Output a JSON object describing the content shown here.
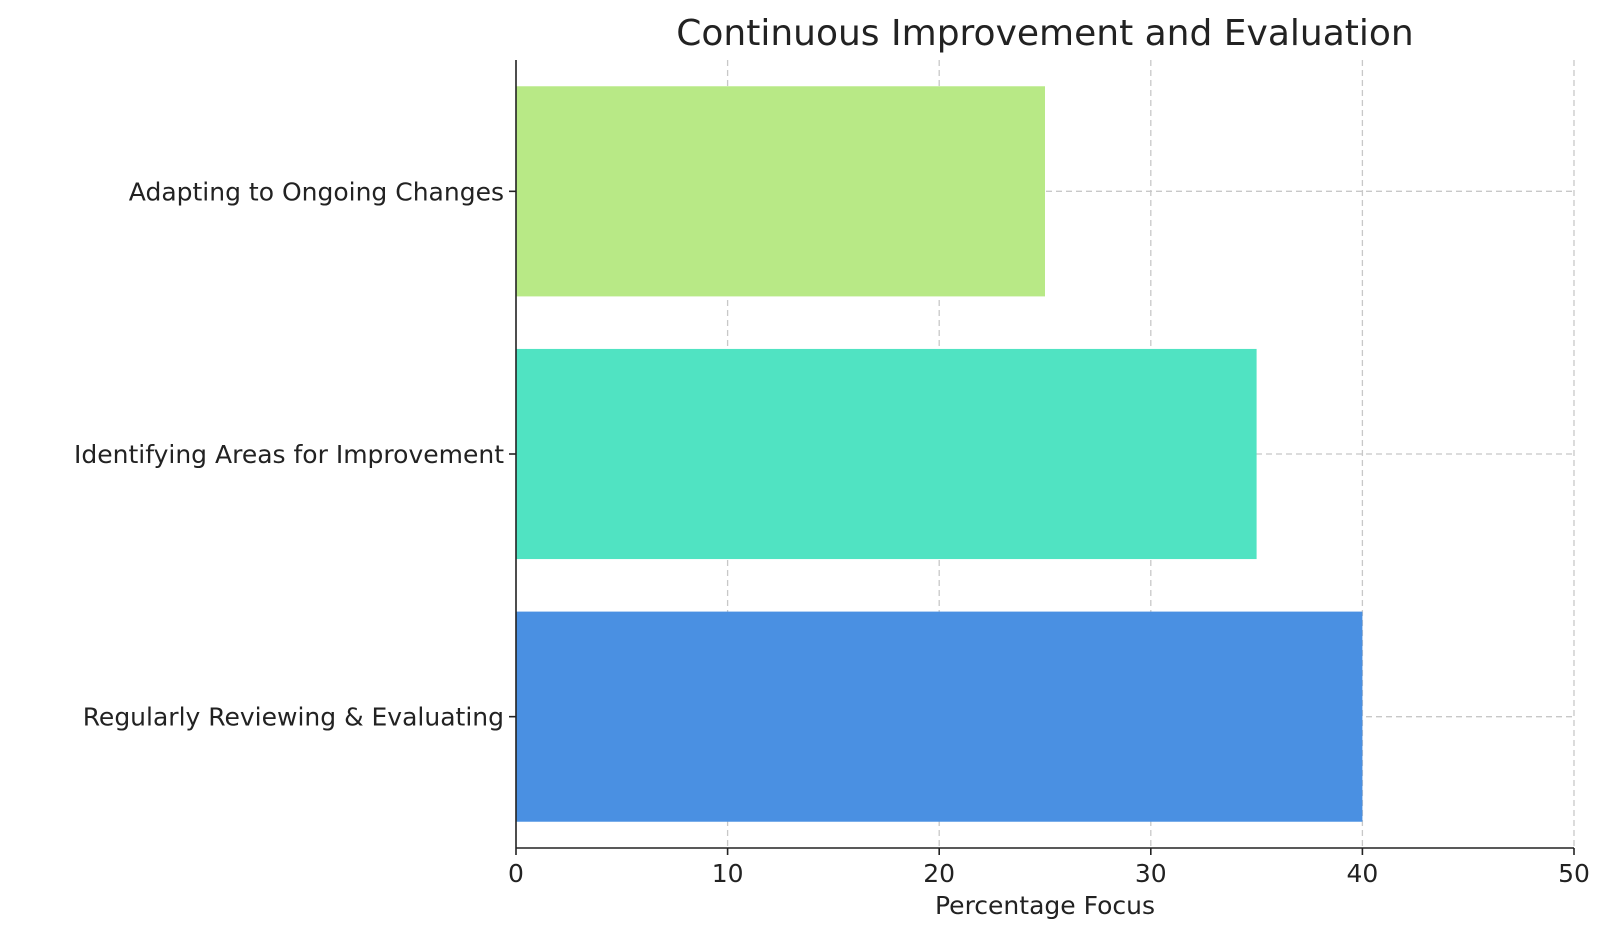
{
  "chart_data": {
    "type": "bar",
    "orientation": "horizontal",
    "title": "Continuous Improvement and Evaluation",
    "xlabel": "Percentage Focus",
    "ylabel": "",
    "xlim": [
      0,
      50
    ],
    "xticks": [
      "0",
      "10",
      "20",
      "30",
      "40",
      "50"
    ],
    "grid": true,
    "categories": [
      "Regularly Reviewing & Evaluating",
      "Identifying Areas for Improvement",
      "Adapting to Ongoing Changes"
    ],
    "values": [
      40,
      35,
      25
    ],
    "colors": [
      "#4a90e2",
      "#50e3c2",
      "#b8e986"
    ]
  }
}
